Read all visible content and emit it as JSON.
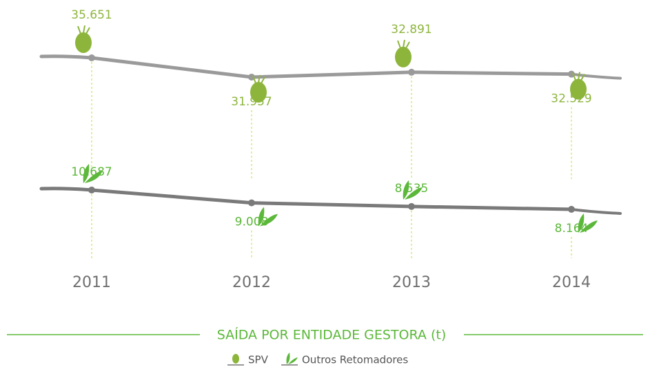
{
  "chart_data": {
    "type": "line",
    "title": "SAÍDA POR ENTIDADE GESTORA (t)",
    "categories": [
      "2011",
      "2012",
      "2013",
      "2014"
    ],
    "series": [
      {
        "name": "SPV",
        "color": "#8db53c",
        "values": [
          35651,
          31957,
          32891,
          32529
        ],
        "value_labels": [
          "35.651",
          "31.957",
          "32.891",
          "32.529"
        ]
      },
      {
        "name": "Outros Retomadores",
        "color": "#5cb83a",
        "values": [
          10687,
          9008,
          8535,
          8164
        ],
        "value_labels": [
          "10.687",
          "9.008",
          "8.535",
          "8.164"
        ]
      }
    ]
  }
}
